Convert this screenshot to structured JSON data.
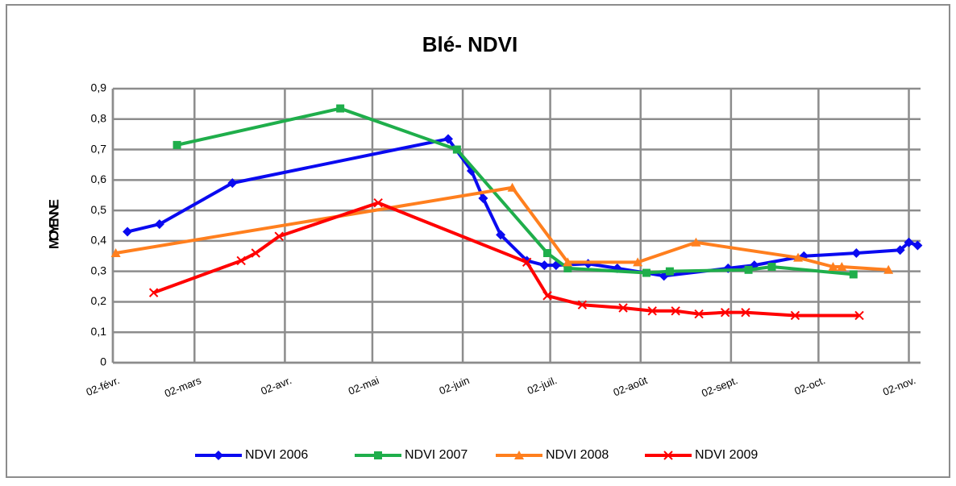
{
  "chart_data": {
    "type": "line",
    "title": "Blé- NDVI",
    "y_label": "MOYENNE",
    "xlim": [
      33,
      310
    ],
    "ylim": [
      0,
      0.9
    ],
    "xticks": [
      {
        "value": 33,
        "label": "02-févr."
      },
      {
        "value": 61,
        "label": "02-mars"
      },
      {
        "value": 92,
        "label": "02-avr."
      },
      {
        "value": 122,
        "label": "02-mai"
      },
      {
        "value": 153,
        "label": "02-juin"
      },
      {
        "value": 183,
        "label": "02-juil."
      },
      {
        "value": 214,
        "label": "02-août"
      },
      {
        "value": 245,
        "label": "02-sept."
      },
      {
        "value": 275,
        "label": "02-oct."
      },
      {
        "value": 306,
        "label": "02-nov."
      }
    ],
    "yticks": [
      0,
      {
        "value": 0.1,
        "label": "0,1"
      },
      {
        "value": 0.2,
        "label": "0,2"
      },
      {
        "value": 0.3,
        "label": "0,3"
      },
      {
        "value": 0.4,
        "label": "0,4"
      },
      {
        "value": 0.5,
        "label": "0,5"
      },
      {
        "value": 0.6,
        "label": "0,6"
      },
      {
        "value": 0.7,
        "label": "0,7"
      },
      {
        "value": 0.8,
        "label": "0,8"
      },
      {
        "value": 0.9,
        "label": "0,9"
      }
    ],
    "grid": true,
    "legend": "bottom",
    "series": [
      {
        "name": "NDVI 2006",
        "color": "#0a0af0",
        "marker": "diamond",
        "x": [
          38,
          49,
          74,
          148,
          156,
          160,
          166,
          175,
          181,
          185,
          196,
          206,
          222,
          244,
          253,
          270,
          288,
          303,
          306,
          309
        ],
        "values": [
          0.43,
          0.455,
          0.59,
          0.735,
          0.63,
          0.54,
          0.42,
          0.335,
          0.32,
          0.32,
          0.325,
          0.31,
          0.285,
          0.31,
          0.32,
          0.35,
          0.36,
          0.37,
          0.395,
          0.385
        ]
      },
      {
        "name": "NDVI 2007",
        "color": "#1fae4b",
        "marker": "square",
        "x": [
          55,
          111,
          151,
          182,
          189,
          216,
          224,
          251,
          259,
          287
        ],
        "values": [
          0.715,
          0.835,
          0.7,
          0.36,
          0.31,
          0.295,
          0.3,
          0.305,
          0.315,
          0.29
        ]
      },
      {
        "name": "NDVI 2008",
        "color": "#ff7f1e",
        "marker": "triangle",
        "x": [
          34,
          170,
          189,
          213,
          233,
          268,
          280,
          283,
          299
        ],
        "values": [
          0.36,
          0.575,
          0.33,
          0.33,
          0.395,
          0.345,
          0.315,
          0.315,
          0.305
        ]
      },
      {
        "name": "NDVI 2009",
        "color": "#ff0000",
        "marker": "x",
        "x": [
          47,
          77,
          82,
          90,
          124,
          175,
          182,
          194,
          208,
          218,
          226,
          234,
          243,
          250,
          267,
          289
        ],
        "values": [
          0.23,
          0.335,
          0.36,
          0.415,
          0.525,
          0.33,
          0.22,
          0.19,
          0.18,
          0.17,
          0.17,
          0.16,
          0.165,
          0.165,
          0.155,
          0.155
        ]
      }
    ]
  }
}
